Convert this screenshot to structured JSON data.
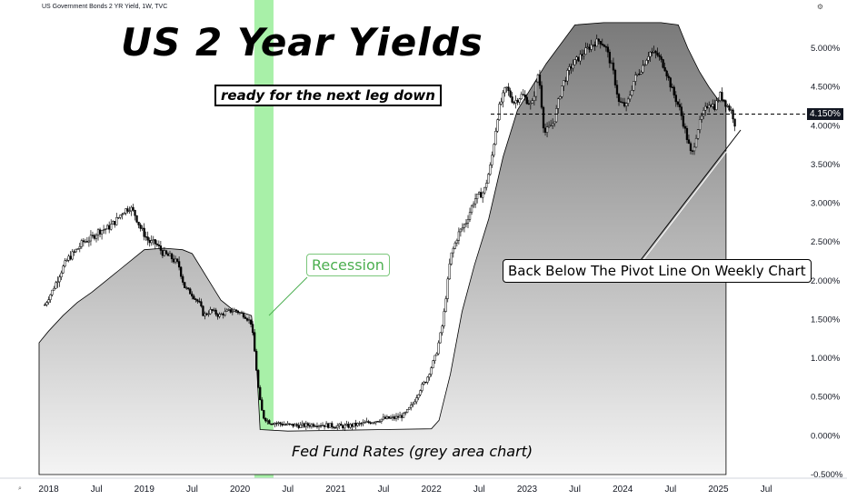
{
  "header": {
    "symbol_line": "US Government Bonds 2 YR Yield, 1W, TVC"
  },
  "annotations": {
    "title": "US 2 Year Yields",
    "subtitle": "ready for the next leg down",
    "recession_label": "Recession",
    "pivot_note": "Back Below The Pivot Line On Weekly Chart",
    "fed_note": "Fed Fund Rates (grey area chart)"
  },
  "price_badge": "4.150%",
  "colors": {
    "candle": "#000000",
    "fed_area": "#b3b3b3",
    "recession_band": "#a8f0a8",
    "pivot_line": "#000000"
  },
  "chart_data": {
    "type": "line",
    "title": "US 2 Year Yields",
    "xlabel": "",
    "ylabel": "",
    "x_ticks": [
      "2018",
      "Jul",
      "2019",
      "Jul",
      "2020",
      "Jul",
      "2021",
      "Jul",
      "2022",
      "Jul",
      "2023",
      "Jul",
      "2024",
      "Jul",
      "2025",
      "Jul"
    ],
    "y_ticks": [
      "5.000%",
      "4.500%",
      "4.000%",
      "3.500%",
      "3.000%",
      "2.500%",
      "2.000%",
      "1.500%",
      "1.000%",
      "0.500%",
      "0.000%",
      "-0.500%"
    ],
    "ylim": [
      -0.5,
      5.5
    ],
    "xlim": [
      2017.9,
      2025.85
    ],
    "pivot_level": 4.15,
    "recession_period": [
      2020.15,
      2020.35
    ],
    "series": [
      {
        "kind": "weekly-close",
        "points": [
          [
            2017.96,
            1.69
          ],
          [
            2018.05,
            1.9
          ],
          [
            2018.12,
            2.1
          ],
          [
            2018.2,
            2.28
          ],
          [
            2018.28,
            2.38
          ],
          [
            2018.36,
            2.5
          ],
          [
            2018.45,
            2.55
          ],
          [
            2018.52,
            2.64
          ],
          [
            2018.62,
            2.68
          ],
          [
            2018.7,
            2.77
          ],
          [
            2018.78,
            2.9
          ],
          [
            2018.85,
            2.95
          ],
          [
            2018.9,
            2.86
          ],
          [
            2018.96,
            2.68
          ],
          [
            2019.05,
            2.5
          ],
          [
            2019.12,
            2.48
          ],
          [
            2019.2,
            2.35
          ],
          [
            2019.28,
            2.3
          ],
          [
            2019.36,
            2.2
          ],
          [
            2019.42,
            1.92
          ],
          [
            2019.5,
            1.82
          ],
          [
            2019.58,
            1.7
          ],
          [
            2019.62,
            1.55
          ],
          [
            2019.7,
            1.62
          ],
          [
            2019.78,
            1.55
          ],
          [
            2019.86,
            1.6
          ],
          [
            2019.95,
            1.62
          ],
          [
            2020.05,
            1.55
          ],
          [
            2020.12,
            1.45
          ],
          [
            2020.16,
            1.0
          ],
          [
            2020.2,
            0.5
          ],
          [
            2020.24,
            0.25
          ],
          [
            2020.3,
            0.18
          ],
          [
            2020.4,
            0.16
          ],
          [
            2020.5,
            0.14
          ],
          [
            2020.65,
            0.13
          ],
          [
            2020.8,
            0.15
          ],
          [
            2020.95,
            0.13
          ],
          [
            2021.1,
            0.12
          ],
          [
            2021.3,
            0.16
          ],
          [
            2021.5,
            0.22
          ],
          [
            2021.62,
            0.23
          ],
          [
            2021.72,
            0.27
          ],
          [
            2021.8,
            0.4
          ],
          [
            2021.88,
            0.6
          ],
          [
            2021.95,
            0.73
          ],
          [
            2022.05,
            1.05
          ],
          [
            2022.12,
            1.45
          ],
          [
            2022.2,
            2.3
          ],
          [
            2022.28,
            2.6
          ],
          [
            2022.36,
            2.75
          ],
          [
            2022.45,
            3.05
          ],
          [
            2022.55,
            3.15
          ],
          [
            2022.62,
            3.5
          ],
          [
            2022.7,
            4.2
          ],
          [
            2022.78,
            4.5
          ],
          [
            2022.86,
            4.3
          ],
          [
            2022.95,
            4.4
          ],
          [
            2023.05,
            4.25
          ],
          [
            2023.12,
            4.7
          ],
          [
            2023.18,
            3.9
          ],
          [
            2023.28,
            4.05
          ],
          [
            2023.36,
            4.5
          ],
          [
            2023.45,
            4.75
          ],
          [
            2023.52,
            4.85
          ],
          [
            2023.6,
            4.95
          ],
          [
            2023.68,
            5.05
          ],
          [
            2023.76,
            5.1
          ],
          [
            2023.82,
            5.02
          ],
          [
            2023.9,
            4.7
          ],
          [
            2023.96,
            4.3
          ],
          [
            2024.04,
            4.25
          ],
          [
            2024.12,
            4.6
          ],
          [
            2024.2,
            4.75
          ],
          [
            2024.28,
            4.95
          ],
          [
            2024.36,
            4.92
          ],
          [
            2024.44,
            4.75
          ],
          [
            2024.52,
            4.45
          ],
          [
            2024.6,
            4.2
          ],
          [
            2024.66,
            3.9
          ],
          [
            2024.72,
            3.6
          ],
          [
            2024.78,
            3.95
          ],
          [
            2024.84,
            4.15
          ],
          [
            2024.9,
            4.3
          ],
          [
            2024.96,
            4.25
          ],
          [
            2025.02,
            4.4
          ],
          [
            2025.08,
            4.28
          ],
          [
            2025.14,
            4.18
          ],
          [
            2025.18,
            3.99
          ]
        ]
      },
      {
        "kind": "fed-funds-area",
        "points": [
          [
            2017.9,
            1.2
          ],
          [
            2018.0,
            1.35
          ],
          [
            2018.15,
            1.55
          ],
          [
            2018.3,
            1.72
          ],
          [
            2018.45,
            1.85
          ],
          [
            2018.6,
            2.0
          ],
          [
            2018.75,
            2.15
          ],
          [
            2018.9,
            2.3
          ],
          [
            2019.0,
            2.4
          ],
          [
            2019.2,
            2.42
          ],
          [
            2019.4,
            2.4
          ],
          [
            2019.5,
            2.35
          ],
          [
            2019.6,
            2.15
          ],
          [
            2019.7,
            1.95
          ],
          [
            2019.8,
            1.75
          ],
          [
            2019.95,
            1.6
          ],
          [
            2020.05,
            1.58
          ],
          [
            2020.12,
            1.55
          ],
          [
            2020.17,
            1.0
          ],
          [
            2020.21,
            0.08
          ],
          [
            2020.5,
            0.06
          ],
          [
            2021.0,
            0.07
          ],
          [
            2021.5,
            0.08
          ],
          [
            2022.0,
            0.09
          ],
          [
            2022.08,
            0.2
          ],
          [
            2022.2,
            0.8
          ],
          [
            2022.32,
            1.6
          ],
          [
            2022.45,
            2.2
          ],
          [
            2022.6,
            2.8
          ],
          [
            2022.75,
            3.6
          ],
          [
            2022.9,
            4.2
          ],
          [
            2023.05,
            4.5
          ],
          [
            2023.2,
            4.8
          ],
          [
            2023.35,
            5.05
          ],
          [
            2023.5,
            5.3
          ],
          [
            2023.8,
            5.33
          ],
          [
            2024.1,
            5.33
          ],
          [
            2024.4,
            5.33
          ],
          [
            2024.58,
            5.3
          ],
          [
            2024.68,
            5.0
          ],
          [
            2024.8,
            4.7
          ],
          [
            2024.9,
            4.5
          ],
          [
            2025.0,
            4.33
          ],
          [
            2025.05,
            4.33
          ],
          [
            2025.08,
            4.33
          ]
        ]
      }
    ]
  }
}
